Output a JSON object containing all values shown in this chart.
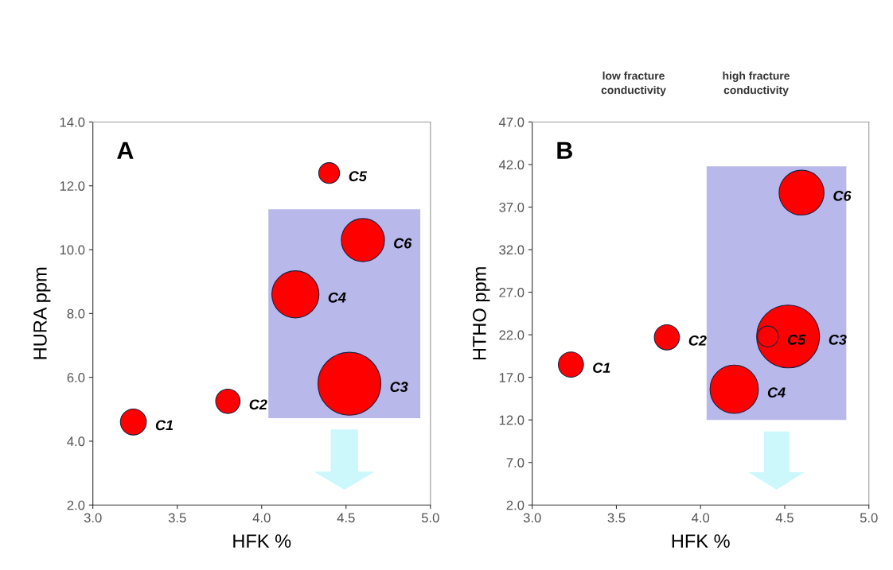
{
  "chart_data": [
    {
      "type": "bubble",
      "title": "A",
      "xlabel": "HFK %",
      "ylabel": "HURA ppm",
      "x": [
        3.24,
        3.8,
        4.52,
        4.2,
        4.4,
        4.6
      ],
      "series": [
        {
          "color": "#ff0000",
          "values": [
            4.6,
            5.25,
            5.8,
            8.6,
            12.4,
            10.3
          ],
          "sizes": [
            0.17,
            0.15,
            1,
            0.56,
            0.11,
            0.47
          ]
        }
      ],
      "xlim": [
        3.0,
        5.0
      ],
      "xticks": [
        {
          "value": 3.0,
          "label": "3.0"
        },
        {
          "value": 3.5,
          "label": "3.5"
        },
        {
          "value": 4.0,
          "label": "4.0"
        },
        {
          "value": 4.5,
          "label": "4.5"
        },
        {
          "value": 5.0,
          "label": "5.0"
        }
      ],
      "ylim": [
        2.0,
        14.0
      ],
      "yticks": [
        {
          "value": 2.0,
          "label": "2.0"
        },
        {
          "value": 4.0,
          "label": "4.0"
        },
        {
          "value": 6.0,
          "label": "6.0"
        },
        {
          "value": 8.0,
          "label": "8.0"
        },
        {
          "value": 10.0,
          "label": "10.0"
        },
        {
          "value": 12.0,
          "label": "12.0"
        },
        {
          "value": 14.0,
          "label": "14.0"
        }
      ],
      "annotations": [
        {
          "text": "C1",
          "x": 3.24,
          "y": 4.6
        },
        {
          "text": "C2",
          "x": 3.8,
          "y": 5.25
        },
        {
          "text": "C3",
          "x": 4.52,
          "y": 5.8
        },
        {
          "text": "C4",
          "x": 4.2,
          "y": 8.6
        },
        {
          "text": "C5",
          "x": 4.4,
          "y": 12.4
        },
        {
          "text": "C6",
          "x": 4.6,
          "y": 10.3
        }
      ],
      "grid": false,
      "legend": false
    },
    {
      "type": "bubble",
      "title": "B",
      "xlabel": "HFK %",
      "ylabel": "HTHO ppm",
      "x": [
        3.23,
        3.8,
        4.52,
        4.2,
        4.4,
        4.6
      ],
      "series": [
        {
          "color": "#ff0000",
          "values": [
            18.5,
            21.7,
            21.8,
            15.6,
            21.8,
            38.7
          ],
          "sizes": [
            0.16,
            0.16,
            1,
            0.59,
            0.11,
            0.51
          ]
        }
      ],
      "xlim": [
        3.0,
        5.0
      ],
      "xticks": [
        {
          "value": 3.0,
          "label": "3.0"
        },
        {
          "value": 3.5,
          "label": "3.5"
        },
        {
          "value": 4.0,
          "label": "4.0"
        },
        {
          "value": 4.5,
          "label": "4.5"
        },
        {
          "value": 5.0,
          "label": "5.0"
        }
      ],
      "ylim": [
        2.0,
        47.0
      ],
      "yticks": [
        {
          "value": 2.0,
          "label": "2.0"
        },
        {
          "value": 7.0,
          "label": "7.0"
        },
        {
          "value": 12.0,
          "label": "12.0"
        },
        {
          "value": 17.0,
          "label": "17.0"
        },
        {
          "value": 22.0,
          "label": "22.0"
        },
        {
          "value": 27.0,
          "label": "27.0"
        },
        {
          "value": 32.0,
          "label": "32.0"
        },
        {
          "value": 37.0,
          "label": "37.0"
        },
        {
          "value": 42.0,
          "label": "42.0"
        },
        {
          "value": 47.0,
          "label": "47.0"
        }
      ],
      "annotations": [
        {
          "text": "C1",
          "x": 3.23,
          "y": 18.5
        },
        {
          "text": "C2",
          "x": 3.8,
          "y": 21.7
        },
        {
          "text": "C3",
          "x": 4.52,
          "y": 21.8
        },
        {
          "text": "C4",
          "x": 4.2,
          "y": 15.6
        },
        {
          "text": "C5",
          "x": 4.4,
          "y": 21.8
        },
        {
          "text": "C6",
          "x": 4.6,
          "y": 38.7
        },
        "low fracture\nconductivity",
        "high fracture\nconductivity"
      ],
      "grid": false,
      "legend": false
    }
  ]
}
